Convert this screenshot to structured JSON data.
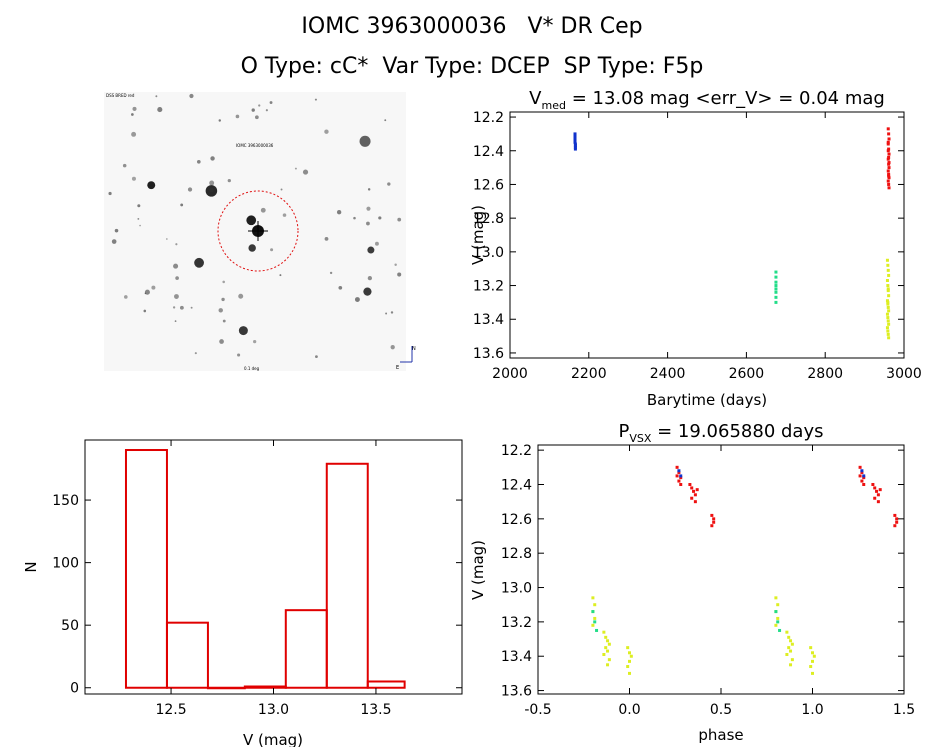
{
  "header": {
    "title": "IOMC 3963000036   V* DR Cep",
    "subtitle": "O Type: cC*  Var Type: DCEP  SP Type: F5p"
  },
  "colors": {
    "histogram": "#e00000",
    "red": "#ee1111",
    "blue": "#1133cc",
    "green": "#22dd88",
    "yellow": "#ddee22",
    "finder_circle": "#e01010"
  },
  "finder": {
    "description_icon": "star-field-image",
    "labels": [
      "DSS BRED red",
      "IOMC 3963000036",
      "0.1 deg",
      "N",
      "E"
    ]
  },
  "chart_data": [
    {
      "type": "scatter",
      "title_main": "V",
      "title_sub": "med",
      "title_rest": " = 13.08 mag <err_V> = 0.04 mag",
      "xlabel": "Barytime (days)",
      "ylabel": "V (mag)",
      "xlim": [
        2000,
        3000
      ],
      "ylim": [
        13.63,
        12.17
      ],
      "yaxis_inverted": true,
      "xticks": [
        2000,
        2200,
        2400,
        2600,
        2800,
        3000
      ],
      "yticks": [
        12.2,
        12.4,
        12.6,
        12.8,
        13.0,
        13.2,
        13.4,
        13.6
      ],
      "series": [
        {
          "color": "blue",
          "x": [
            2165,
            2165,
            2165,
            2165,
            2165,
            2165,
            2166,
            2166,
            2166,
            2166
          ],
          "y": [
            12.3,
            12.31,
            12.32,
            12.33,
            12.34,
            12.35,
            12.36,
            12.37,
            12.38,
            12.39
          ]
        },
        {
          "color": "green",
          "x": [
            2675,
            2675,
            2675,
            2675,
            2675,
            2675,
            2675,
            2675
          ],
          "y": [
            13.12,
            13.15,
            13.18,
            13.2,
            13.22,
            13.24,
            13.27,
            13.3
          ]
        },
        {
          "color": "red",
          "x": [
            2960,
            2961,
            2962,
            2960,
            2961,
            2962,
            2960,
            2961,
            2962,
            2960,
            2961,
            2962,
            2960,
            2961,
            2962,
            2960,
            2961,
            2962,
            2960,
            2961
          ],
          "y": [
            12.27,
            12.3,
            12.33,
            12.36,
            12.39,
            12.42,
            12.45,
            12.48,
            12.5,
            12.52,
            12.54,
            12.56,
            12.58,
            12.6,
            12.62,
            12.4,
            12.44,
            12.47,
            12.35,
            12.55
          ]
        },
        {
          "color": "yellow",
          "x": [
            2958,
            2959,
            2960,
            2961,
            2958,
            2959,
            2960,
            2961,
            2958,
            2959,
            2960,
            2961,
            2958,
            2959,
            2960,
            2961,
            2958,
            2959,
            2960,
            2961,
            2959,
            2960
          ],
          "y": [
            13.05,
            13.08,
            13.11,
            13.14,
            13.17,
            13.2,
            13.23,
            13.26,
            13.29,
            13.31,
            13.33,
            13.35,
            13.37,
            13.39,
            13.41,
            13.43,
            13.45,
            13.47,
            13.49,
            13.51,
            13.3,
            13.22
          ]
        }
      ]
    },
    {
      "type": "bar",
      "xlabel": "V (mag)",
      "ylabel": "N",
      "xlim": [
        12.08,
        13.92
      ],
      "ylim": [
        -5,
        198
      ],
      "xticks": [
        12.5,
        13.0,
        13.5
      ],
      "yticks": [
        0,
        50,
        100,
        150
      ],
      "bin_edges": [
        12.28,
        12.48,
        12.68,
        12.86,
        13.06,
        13.26,
        13.46,
        13.64
      ],
      "values": [
        190,
        52,
        0,
        1,
        62,
        179,
        5
      ]
    },
    {
      "type": "scatter",
      "title_main": "P",
      "title_sub": "VSX",
      "title_rest": " = 19.065880 days",
      "xlabel": "phase",
      "ylabel": "V (mag)",
      "xlim": [
        -0.5,
        1.5
      ],
      "ylim": [
        13.62,
        12.17
      ],
      "yaxis_inverted": true,
      "xticks": [
        -0.5,
        0.0,
        0.5,
        1.0,
        1.5
      ],
      "yticks": [
        12.2,
        12.4,
        12.6,
        12.8,
        13.0,
        13.2,
        13.4,
        13.6
      ],
      "series": [
        {
          "color": "red",
          "x": [
            0.26,
            0.27,
            0.28,
            0.27,
            0.26,
            0.28,
            0.33,
            0.34,
            0.35,
            0.36,
            0.37,
            0.34,
            0.36,
            0.45,
            0.46,
            0.46,
            0.45,
            1.26,
            1.27,
            1.28,
            1.27,
            1.26,
            1.28,
            1.33,
            1.34,
            1.35,
            1.36,
            1.37,
            1.34,
            1.36,
            1.45,
            1.46,
            1.46,
            1.45
          ],
          "y": [
            12.3,
            12.33,
            12.36,
            12.38,
            12.35,
            12.4,
            12.4,
            12.42,
            12.44,
            12.46,
            12.43,
            12.48,
            12.5,
            12.58,
            12.6,
            12.62,
            12.64,
            12.3,
            12.33,
            12.36,
            12.38,
            12.35,
            12.4,
            12.4,
            12.42,
            12.44,
            12.46,
            12.43,
            12.48,
            12.5,
            12.58,
            12.6,
            12.62,
            12.64
          ]
        },
        {
          "color": "blue",
          "x": [
            0.27,
            0.28,
            1.27,
            1.28
          ],
          "y": [
            12.32,
            12.35,
            12.32,
            12.35
          ]
        },
        {
          "color": "yellow",
          "x": [
            -0.2,
            -0.19,
            -0.2,
            -0.19,
            -0.2,
            -0.14,
            -0.13,
            -0.12,
            -0.11,
            -0.13,
            -0.12,
            -0.14,
            -0.11,
            -0.12,
            -0.01,
            0.0,
            0.01,
            0.0,
            -0.01,
            0.0,
            0.8,
            0.81,
            0.8,
            0.81,
            0.8,
            0.86,
            0.87,
            0.88,
            0.89,
            0.87,
            0.88,
            0.86,
            0.89,
            0.88,
            0.99,
            1.0,
            1.01,
            1.0,
            0.99,
            1.0
          ],
          "y": [
            13.06,
            13.1,
            13.14,
            13.18,
            13.22,
            13.26,
            13.29,
            13.31,
            13.33,
            13.35,
            13.37,
            13.39,
            13.42,
            13.45,
            13.35,
            13.38,
            13.4,
            13.43,
            13.46,
            13.5,
            13.06,
            13.1,
            13.14,
            13.18,
            13.22,
            13.26,
            13.29,
            13.31,
            13.33,
            13.35,
            13.37,
            13.39,
            13.42,
            13.45,
            13.35,
            13.38,
            13.4,
            13.43,
            13.46,
            13.5
          ]
        },
        {
          "color": "green",
          "x": [
            -0.2,
            -0.19,
            -0.18,
            0.8,
            0.81,
            0.82
          ],
          "y": [
            13.14,
            13.2,
            13.25,
            13.14,
            13.2,
            13.25
          ]
        }
      ]
    }
  ]
}
